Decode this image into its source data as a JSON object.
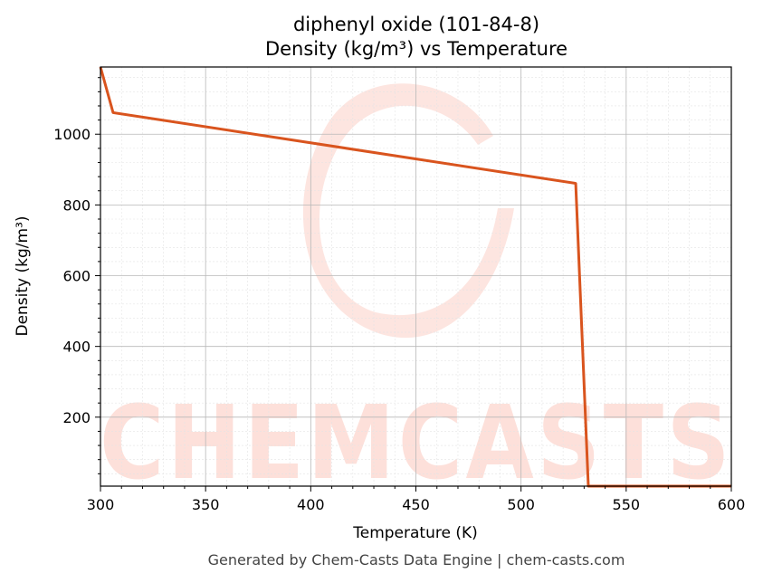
{
  "chart_data": {
    "type": "line",
    "title_line1": "diphenyl oxide (101-84-8)",
    "title_line2": "Density (kg/m³) vs Temperature",
    "xlabel": "Temperature (K)",
    "ylabel": "Density (kg/m³)",
    "xlim": [
      300,
      600
    ],
    "ylim": [
      5,
      1190
    ],
    "xticks": [
      300,
      350,
      400,
      450,
      500,
      550,
      600
    ],
    "yticks": [
      200,
      400,
      600,
      800,
      1000
    ],
    "grid": true,
    "series": [
      {
        "color": "#d9541e",
        "x": [
          300,
          306,
          526,
          532,
          600
        ],
        "y": [
          1190,
          1061,
          861,
          5,
          5
        ]
      }
    ]
  },
  "watermark": {
    "text": "CHEMCASTS",
    "color": "#fde0da"
  },
  "footer": "Generated by Chem-Casts Data Engine | chem-casts.com"
}
